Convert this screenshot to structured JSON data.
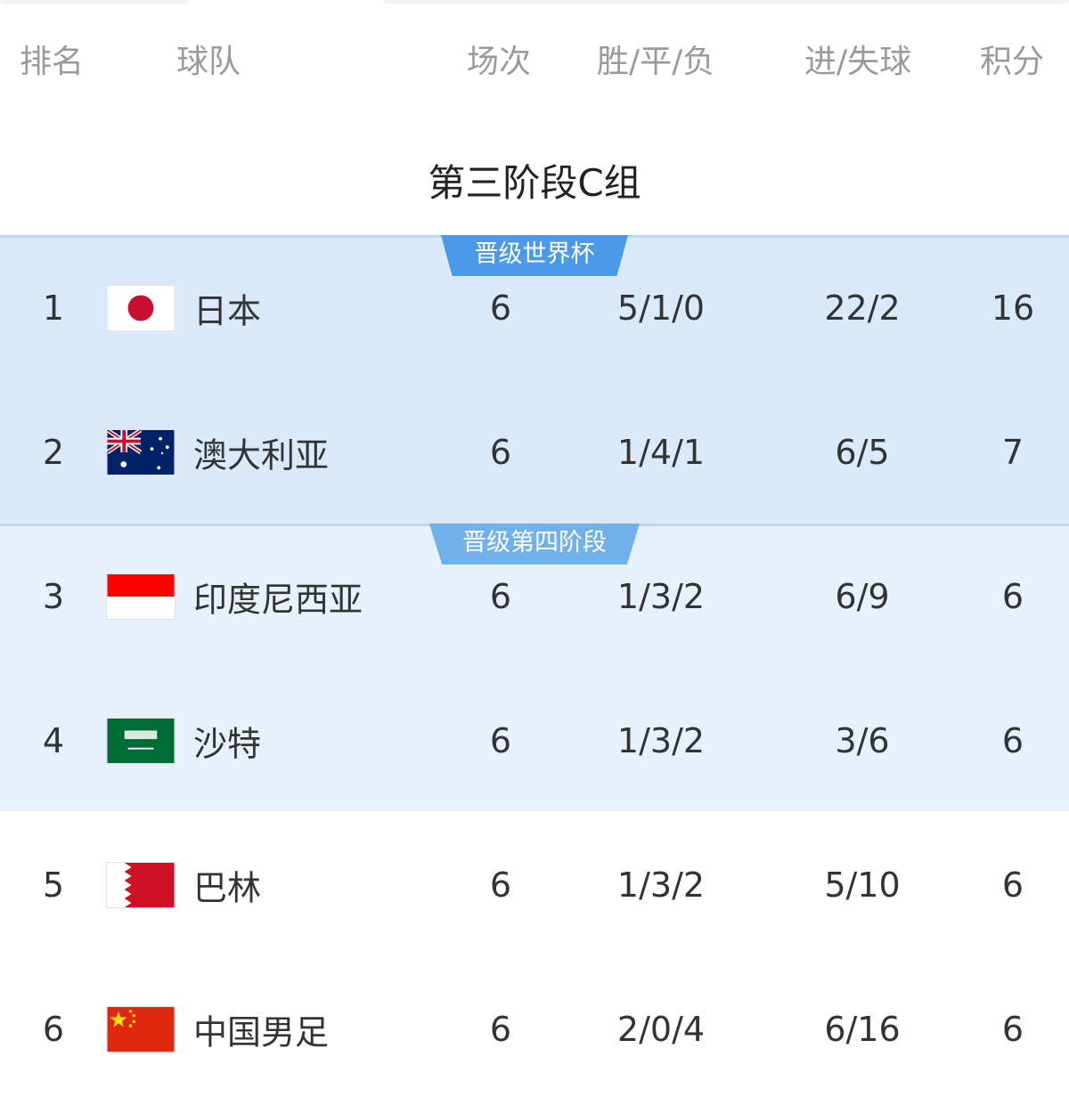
{
  "header": {
    "rank": "排名",
    "team": "球队",
    "played": "场次",
    "wdl": "胜/平/负",
    "goals": "进/失球",
    "points": "积分"
  },
  "title": "第三阶段C组",
  "sections": [
    {
      "badge": "晋级世界杯",
      "bg": "#dbeafb",
      "badge_color": "#4a9ae8"
    },
    {
      "badge": "晋级第四阶段",
      "bg": "#e7f1fc",
      "badge_color": "#70b1ec"
    }
  ],
  "rows": [
    {
      "rank": "1",
      "flag": "japan-flag",
      "team": "日本",
      "played": "6",
      "wdl": "5/1/0",
      "goals": "22/2",
      "points": "16"
    },
    {
      "rank": "2",
      "flag": "australia-flag",
      "team": "澳大利亚",
      "played": "6",
      "wdl": "1/4/1",
      "goals": "6/5",
      "points": "7"
    },
    {
      "rank": "3",
      "flag": "indonesia-flag",
      "team": "印度尼西亚",
      "played": "6",
      "wdl": "1/3/2",
      "goals": "6/9",
      "points": "6"
    },
    {
      "rank": "4",
      "flag": "saudi-arabia-flag",
      "team": "沙特",
      "played": "6",
      "wdl": "1/3/2",
      "goals": "3/6",
      "points": "6"
    },
    {
      "rank": "5",
      "flag": "bahrain-flag",
      "team": "巴林",
      "played": "6",
      "wdl": "1/3/2",
      "goals": "5/10",
      "points": "6"
    },
    {
      "rank": "6",
      "flag": "china-flag",
      "team": "中国男足",
      "played": "6",
      "wdl": "2/0/4",
      "goals": "6/16",
      "points": "6"
    }
  ]
}
